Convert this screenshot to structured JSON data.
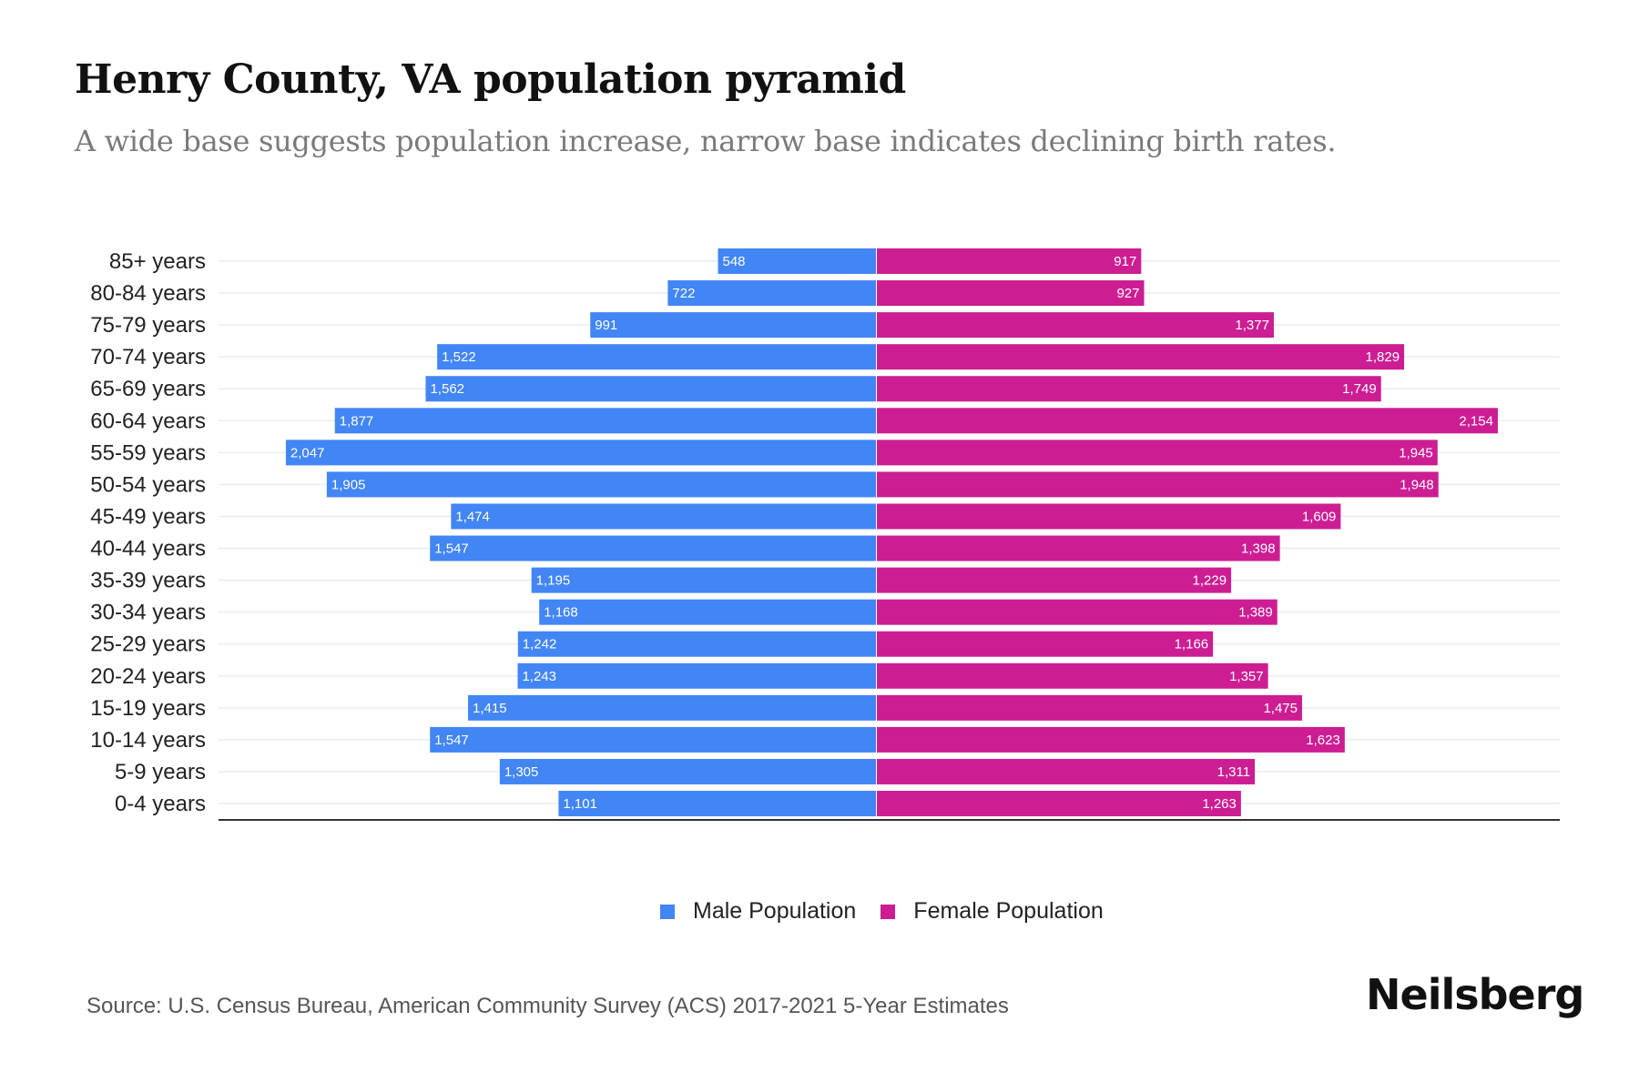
{
  "header": {
    "title": "Henry County, VA population pyramid",
    "subtitle": "A wide base suggests population increase, narrow base indicates declining birth rates."
  },
  "chart_data": {
    "type": "bar",
    "orientation": "horizontal-pyramid",
    "title": "Henry County, VA population pyramid",
    "subtitle": "A wide base suggests population increase, narrow base indicates declining birth rates.",
    "xlabel": "",
    "ylabel": "",
    "categories": [
      "85+ years",
      "80-84 years",
      "75-79 years",
      "70-74 years",
      "65-69 years",
      "60-64 years",
      "55-59 years",
      "50-54 years",
      "45-49 years",
      "40-44 years",
      "35-39 years",
      "30-34 years",
      "25-29 years",
      "20-24 years",
      "15-19 years",
      "10-14 years",
      "5-9 years",
      "0-4 years"
    ],
    "series": [
      {
        "name": "Male Population",
        "color": "#4285F4",
        "side": "left",
        "values": [
          548,
          722,
          991,
          1522,
          1562,
          1877,
          2047,
          1905,
          1474,
          1547,
          1195,
          1168,
          1242,
          1243,
          1415,
          1547,
          1305,
          1101
        ],
        "labels": [
          "548",
          "722",
          "991",
          "1,522",
          "1,562",
          "1,877",
          "2,047",
          "1,905",
          "1,474",
          "1,547",
          "1,195",
          "1,168",
          "1,242",
          "1,243",
          "1,415",
          "1,547",
          "1,305",
          "1,101"
        ]
      },
      {
        "name": "Female Population",
        "color": "#CC1D93",
        "side": "right",
        "values": [
          917,
          927,
          1377,
          1829,
          1749,
          2154,
          1945,
          1948,
          1609,
          1398,
          1229,
          1389,
          1166,
          1357,
          1475,
          1623,
          1311,
          1263
        ],
        "labels": [
          "917",
          "927",
          "1,377",
          "1,829",
          "1,749",
          "2,154",
          "1,945",
          "1,948",
          "1,609",
          "1,398",
          "1,229",
          "1,389",
          "1,166",
          "1,357",
          "1,475",
          "1,623",
          "1,311",
          "1,263"
        ]
      }
    ],
    "xlim": [
      -2050,
      2050
    ],
    "grid": true,
    "legend_position": "bottom-center"
  },
  "legend": {
    "items": [
      {
        "label": "Male Population",
        "color": "#4285F4"
      },
      {
        "label": "Female Population",
        "color": "#CC1D93"
      }
    ]
  },
  "footer": {
    "source": "Source: U.S. Census Bureau, American Community Survey (ACS) 2017-2021 5-Year Estimates",
    "brand": "Neilsberg"
  }
}
